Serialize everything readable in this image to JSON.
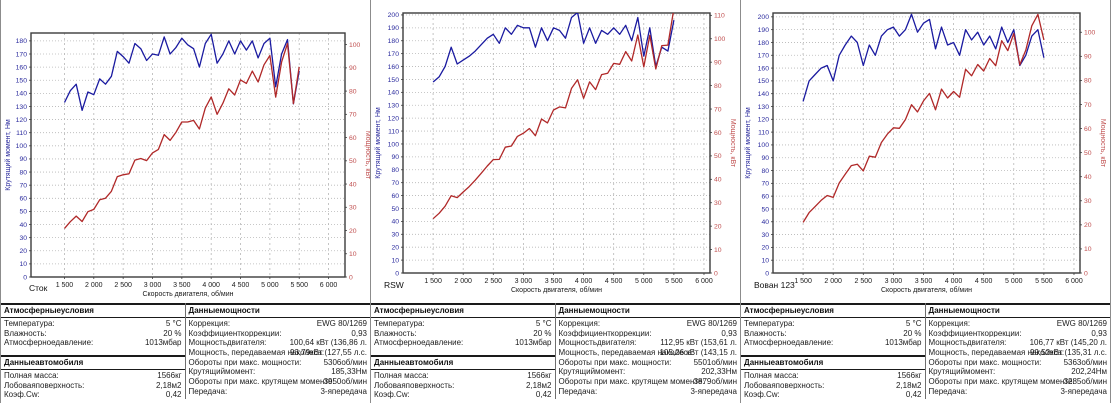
{
  "colors": {
    "torque_curve": "#1a1aa0",
    "power_curve": "#b02828",
    "left_axis_text": "#2b2b9e",
    "right_axis_text": "#c05050",
    "grid": "#b6b6b6",
    "box_border": "#3c3c3c"
  },
  "chart_data": [
    {
      "type": "line",
      "title": "Сток",
      "xlabel": "Скорость двигателя, об/мин",
      "ylabel_left": "Крутящий момент, Нм",
      "ylabel_right": "Мощность, кВт",
      "x_ticks": [
        1500,
        2000,
        2500,
        3000,
        3500,
        4000,
        4500,
        5000,
        5500,
        6000
      ],
      "x_tick_labels": [
        "1 500",
        "2 000",
        "2 500",
        "3 000",
        "3 500",
        "4 000",
        "4 500",
        "5 000",
        "5 500",
        "6 000"
      ],
      "xlim": [
        930,
        6280
      ],
      "ylim_left": [
        0,
        186
      ],
      "ylim_right": [
        0,
        105
      ],
      "left_ticks_max": 180,
      "right_ticks_max": 100,
      "grid": true,
      "x": [
        1500,
        1600,
        1700,
        1800,
        1900,
        2000,
        2100,
        2200,
        2300,
        2400,
        2500,
        2600,
        2700,
        2800,
        2900,
        3000,
        3100,
        3200,
        3300,
        3400,
        3500,
        3600,
        3700,
        3800,
        3900,
        4000,
        4100,
        4200,
        4300,
        4400,
        4500,
        4600,
        4700,
        4800,
        4900,
        5000,
        5100,
        5200,
        5300,
        5400,
        5500
      ],
      "series": [
        {
          "name": "Крутящий момент, Нм",
          "axis": "left",
          "color": "#1a1aa0",
          "values": [
            133,
            142,
            147,
            127,
            141,
            139,
            151,
            147,
            153,
            172,
            168,
            163,
            178,
            174,
            165,
            170,
            169,
            183,
            170,
            175,
            182,
            177,
            174,
            160,
            178,
            185,
            163,
            170,
            180,
            170,
            180,
            173,
            180,
            167,
            178,
            182,
            145,
            170,
            181,
            132,
            157
          ]
        },
        {
          "name": "Мощность, кВт",
          "axis": "right",
          "color": "#b02828",
          "values": [
            20.9,
            23.8,
            26.2,
            23.9,
            28.1,
            29.1,
            33.2,
            33.9,
            36.9,
            43.2,
            44,
            44.4,
            50.3,
            51,
            50.1,
            53.4,
            54.9,
            61.3,
            58.8,
            62.3,
            66.7,
            66.7,
            67.4,
            63.7,
            72.7,
            77.5,
            70,
            74.8,
            81,
            78.3,
            84.8,
            83.3,
            88.6,
            83.9,
            91.3,
            95.3,
            77.4,
            92.5,
            100.5,
            74.6,
            90.4
          ]
        }
      ]
    },
    {
      "type": "line",
      "title": "RSW",
      "xlabel": "Скорость двигателя, об/мин",
      "ylabel_left": "Крутящий момент, Нм",
      "ylabel_right": "Мощность, кВт",
      "x_ticks": [
        1500,
        2000,
        2500,
        3000,
        3500,
        4000,
        4500,
        5000,
        5500,
        6000
      ],
      "x_tick_labels": [
        "1 500",
        "2 000",
        "2 500",
        "3 000",
        "3 500",
        "4 000",
        "4 500",
        "5 000",
        "5 500",
        "6 000"
      ],
      "xlim": [
        1000,
        6100
      ],
      "ylim_left": [
        0,
        201.5
      ],
      "ylim_right": [
        0,
        111
      ],
      "left_ticks_max": 200,
      "right_ticks_max": 110,
      "grid": true,
      "x": [
        1500,
        1600,
        1700,
        1800,
        1900,
        2000,
        2100,
        2200,
        2300,
        2400,
        2500,
        2600,
        2700,
        2800,
        2900,
        3000,
        3100,
        3200,
        3300,
        3400,
        3500,
        3600,
        3700,
        3800,
        3900,
        4000,
        4100,
        4200,
        4300,
        4400,
        4500,
        4600,
        4700,
        4800,
        4900,
        5000,
        5100,
        5200,
        5300,
        5400,
        5500
      ],
      "series": [
        {
          "name": "Крутящий момент, Нм",
          "axis": "left",
          "color": "#1a1aa0",
          "values": [
            148,
            152,
            160,
            175,
            162,
            165,
            168,
            172,
            177,
            182,
            185,
            178,
            190,
            185,
            192,
            190,
            190,
            175,
            190,
            180,
            190,
            188,
            182,
            198,
            202,
            178,
            190,
            178,
            188,
            185,
            190,
            185,
            192,
            180,
            198,
            168,
            190,
            160,
            175,
            172,
            196
          ]
        },
        {
          "name": "Мощность, кВт",
          "axis": "right",
          "color": "#b02828",
          "values": [
            23.2,
            25.5,
            28.5,
            33,
            32.2,
            34.6,
            36.9,
            39.6,
            42.6,
            45.7,
            48.4,
            48.5,
            53.7,
            54.2,
            58.3,
            59.7,
            61.7,
            58.6,
            65.7,
            64.1,
            69.6,
            70.9,
            70.5,
            78.8,
            82.5,
            74.6,
            81.6,
            78.3,
            84.7,
            85.3,
            89.5,
            89.1,
            94.5,
            90.5,
            101.6,
            88,
            101.5,
            87.1,
            97.1,
            97.3,
            112.9
          ]
        }
      ]
    },
    {
      "type": "line",
      "title": "Вован 123",
      "xlabel": "Скорость двигателя, об/мин",
      "ylabel_left": "Крутящий момент, Нм",
      "ylabel_right": "Мощность, кВт",
      "x_ticks": [
        1500,
        2000,
        2500,
        3000,
        3500,
        4000,
        4500,
        5000,
        5500,
        6000
      ],
      "x_tick_labels": [
        "1 500",
        "2 000",
        "2 500",
        "3 000",
        "3 500",
        "4 000",
        "4 500",
        "5 000",
        "5 500",
        "6 000"
      ],
      "xlim": [
        1000,
        6100
      ],
      "ylim_left": [
        0,
        203
      ],
      "ylim_right": [
        0,
        108
      ],
      "left_ticks_max": 200,
      "right_ticks_max": 100,
      "grid": true,
      "x": [
        1500,
        1600,
        1700,
        1800,
        1900,
        2000,
        2100,
        2200,
        2300,
        2400,
        2500,
        2600,
        2700,
        2800,
        2900,
        3000,
        3100,
        3200,
        3300,
        3400,
        3500,
        3600,
        3700,
        3800,
        3900,
        4000,
        4100,
        4200,
        4300,
        4400,
        4500,
        4600,
        4700,
        4800,
        4900,
        5000,
        5100,
        5200,
        5300,
        5400,
        5500
      ],
      "series": [
        {
          "name": "Крутящий момент, Нм",
          "axis": "left",
          "color": "#1a1aa0",
          "values": [
            134,
            150,
            155,
            160,
            162,
            150,
            170,
            178,
            185,
            180,
            162,
            178,
            170,
            185,
            190,
            192,
            185,
            190,
            202,
            188,
            195,
            198,
            175,
            192,
            178,
            180,
            170,
            190,
            182,
            188,
            178,
            185,
            175,
            192,
            180,
            190,
            162,
            170,
            185,
            190,
            168
          ]
        },
        {
          "name": "Мощность, кВт",
          "axis": "right",
          "color": "#b02828",
          "values": [
            21,
            25.1,
            27.6,
            30.2,
            32.2,
            31.4,
            37.4,
            41,
            44.6,
            45.2,
            42.4,
            48.5,
            48.1,
            54.2,
            57.7,
            60.3,
            60.1,
            63.7,
            69.9,
            66.9,
            71.5,
            74.6,
            67.8,
            76.4,
            72.7,
            75.4,
            73,
            84.6,
            81.9,
            86.6,
            83.9,
            89.1,
            86.1,
            96.5,
            92.4,
            99.5,
            86.5,
            92.6,
            102.7,
            107.4,
            96.8
          ]
        }
      ]
    }
  ],
  "panels": [
    {
      "label": "Сток",
      "table": {
        "atmos_header": "Атмосферныеусловия",
        "atmos_rows": [
          [
            "Температура:",
            "5 °C"
          ],
          [
            "Влажность:",
            "20 %"
          ],
          [
            "Атмосферноедавление:",
            "1013мбар"
          ]
        ],
        "vehicle_header": "Данныеавтомобиля",
        "vehicle_rows": [
          [
            "Полная масса:",
            "1566кг"
          ],
          [
            "Лобоваяповерхность:",
            "2,18м2"
          ],
          [
            "Коэф.Cw:",
            "0,42"
          ]
        ],
        "power_header": "Данныемощности",
        "power_rows": [
          [
            "Коррекция:",
            "EWG 80/1269"
          ],
          [
            "Коэффициенткоррекции:",
            "0,93"
          ],
          [
            "Мощностьдвигателя:",
            "100,64 кВт (136,86 л."
          ],
          [
            "Мощность, передаваемая наколеса:",
            "93,79кВт (127,55 л.с."
          ],
          [
            "Обороты при макс. мощности:",
            "5306об/мин"
          ],
          [
            "Крутящиймомент:",
            "185,33Нм"
          ],
          [
            "Обороты при макс. крутящем моменте:",
            "3950об/мин"
          ],
          [
            "Передача:",
            "3-япередача"
          ]
        ]
      }
    },
    {
      "label": "RSW",
      "table": {
        "atmos_header": "Атмосферныеусловия",
        "atmos_rows": [
          [
            "Температура:",
            "5 °C"
          ],
          [
            "Влажность:",
            "20 %"
          ],
          [
            "Атмосферноедавление:",
            "1013мбар"
          ]
        ],
        "vehicle_header": "Данныеавтомобиля",
        "vehicle_rows": [
          [
            "Полная масса:",
            "1566кг"
          ],
          [
            "Лобоваяповерхность:",
            "2,18м2"
          ],
          [
            "Коэф.Cw:",
            "0,42"
          ]
        ],
        "power_header": "Данныемощности",
        "power_rows": [
          [
            "Коррекция:",
            "EWG 80/1269"
          ],
          [
            "Коэффициенткоррекции:",
            "0,93"
          ],
          [
            "Мощностьдвигателя:",
            "112,95 кВт (153,61 л."
          ],
          [
            "Мощность, передаваемая наколеса:",
            "105,26 кВт (143,15 л."
          ],
          [
            "Обороты при макс. мощности:",
            "5501об/мин"
          ],
          [
            "Крутящиймомент:",
            "202,33Нм"
          ],
          [
            "Обороты при макс. крутящем моменте:",
            "3879об/мин"
          ],
          [
            "Передача:",
            "3-япередача"
          ]
        ]
      }
    },
    {
      "label": "Вован 123",
      "table": {
        "atmos_header": "Атмосферныеусловия",
        "atmos_rows": [
          [
            "Температура:",
            "5 °C"
          ],
          [
            "Влажность:",
            "20 %"
          ],
          [
            "Атмосферноедавление:",
            "1013мбар"
          ]
        ],
        "vehicle_header": "Данныеавтомобиля",
        "vehicle_rows": [
          [
            "Полная масса:",
            "1566кг"
          ],
          [
            "Лобоваяповерхность:",
            "2,18м2"
          ],
          [
            "Коэф.Cw:",
            "0,42"
          ]
        ],
        "power_header": "Данныемощности",
        "power_rows": [
          [
            "Коррекция:",
            "EWG 80/1269"
          ],
          [
            "Коэффициенткоррекции:",
            "0,93"
          ],
          [
            "Мощностьдвигателя:",
            "106,77 кВт (145,20 л."
          ],
          [
            "Мощность, передаваемая наколеса:",
            "99,52кВт (135,31 л.с."
          ],
          [
            "Обороты при макс. мощности:",
            "5363об/мин"
          ],
          [
            "Крутящиймомент:",
            "202,24Нм"
          ],
          [
            "Обороты при макс. крутящем моменте:",
            "3285об/мин"
          ],
          [
            "Передача:",
            "3-япередача"
          ]
        ]
      }
    }
  ]
}
